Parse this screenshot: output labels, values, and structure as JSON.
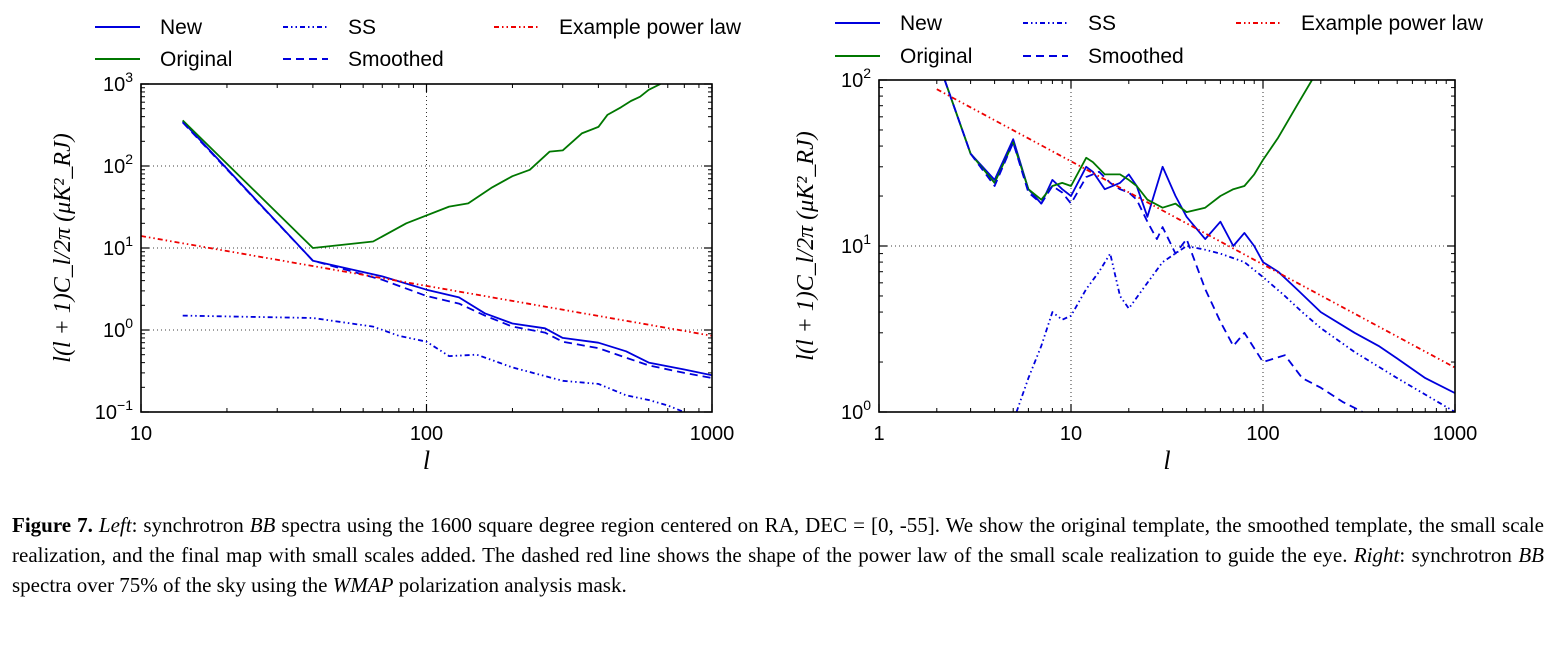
{
  "chart_data": [
    {
      "id": "left",
      "type": "line",
      "xscale": "log",
      "yscale": "log",
      "xlim": [
        10,
        1000
      ],
      "ylim": [
        0.1,
        1000
      ],
      "xlabel": "l",
      "ylabel": "l(l + 1)C_l/2π (μK²_RJ)",
      "grid": true,
      "xticks": [
        {
          "value": 10,
          "label": "10"
        },
        {
          "value": 100,
          "label": "100"
        },
        {
          "value": 1000,
          "label": "1000"
        }
      ],
      "yticks": [
        {
          "value": 0.1,
          "base": "10",
          "exp": "−1"
        },
        {
          "value": 1,
          "base": "10",
          "exp": "0"
        },
        {
          "value": 10,
          "base": "10",
          "exp": "1"
        },
        {
          "value": 100,
          "base": "10",
          "exp": "2"
        },
        {
          "value": 1000,
          "base": "10",
          "exp": "3"
        }
      ],
      "series": [
        {
          "name": "New",
          "color": "#0000dd",
          "style": "solid",
          "x": [
            14,
            40,
            70,
            100,
            130,
            160,
            200,
            260,
            300,
            400,
            500,
            600,
            800,
            1000
          ],
          "y": [
            350,
            7,
            4.5,
            3.1,
            2.5,
            1.6,
            1.2,
            1.05,
            0.8,
            0.7,
            0.55,
            0.4,
            0.33,
            0.28
          ]
        },
        {
          "name": "Original",
          "color": "#007700",
          "style": "solid",
          "x": [
            14,
            40,
            65,
            85,
            120,
            140,
            170,
            200,
            230,
            270,
            300,
            350,
            400,
            430,
            480,
            520,
            560,
            600,
            660
          ],
          "y": [
            360,
            10,
            12,
            20,
            32,
            35,
            55,
            75,
            90,
            150,
            155,
            250,
            300,
            420,
            520,
            620,
            700,
            850,
            1000
          ]
        },
        {
          "name": "SS",
          "color": "#0000dd",
          "style": "dashdotdot",
          "x": [
            14,
            40,
            65,
            80,
            100,
            120,
            150,
            200,
            300,
            400,
            500,
            600,
            700,
            860
          ],
          "y": [
            1.5,
            1.4,
            1.1,
            0.85,
            0.72,
            0.48,
            0.5,
            0.35,
            0.24,
            0.22,
            0.16,
            0.14,
            0.12,
            0.09
          ]
        },
        {
          "name": "Smoothed",
          "color": "#0000dd",
          "style": "dashed",
          "x": [
            14,
            40,
            70,
            100,
            130,
            160,
            200,
            260,
            300,
            400,
            500,
            600,
            800,
            1000
          ],
          "y": [
            340,
            7,
            4.1,
            2.6,
            2.1,
            1.5,
            1.1,
            0.93,
            0.72,
            0.6,
            0.46,
            0.37,
            0.3,
            0.26
          ]
        },
        {
          "name": "Example power law",
          "color": "#ee0000",
          "style": "dashdotdot",
          "x": [
            10,
            1000
          ],
          "y": [
            14,
            0.85
          ]
        }
      ]
    },
    {
      "id": "right",
      "type": "line",
      "xscale": "log",
      "yscale": "log",
      "xlim": [
        1,
        1000
      ],
      "ylim": [
        1,
        100
      ],
      "xlabel": "l",
      "ylabel": "l(l + 1)C_l/2π (μK²_RJ)",
      "grid": true,
      "xticks": [
        {
          "value": 1,
          "label": "1"
        },
        {
          "value": 10,
          "label": "10"
        },
        {
          "value": 100,
          "label": "100"
        },
        {
          "value": 1000,
          "label": "1000"
        }
      ],
      "yticks": [
        {
          "value": 1,
          "base": "10",
          "exp": "0"
        },
        {
          "value": 10,
          "base": "10",
          "exp": "1"
        },
        {
          "value": 100,
          "base": "10",
          "exp": "2"
        }
      ],
      "series": [
        {
          "name": "New",
          "color": "#0000dd",
          "style": "solid",
          "x": [
            2.2,
            3,
            4,
            5,
            6,
            7,
            8,
            9,
            10,
            12,
            13,
            15,
            18,
            20,
            22,
            25,
            30,
            35,
            40,
            50,
            60,
            70,
            80,
            90,
            100,
            120,
            150,
            200,
            300,
            400,
            500,
            700,
            1000
          ],
          "y": [
            100,
            36,
            25,
            44,
            22,
            18,
            25,
            22,
            20,
            30,
            28,
            22,
            24,
            27,
            23,
            15,
            30,
            20,
            15,
            11,
            14,
            10,
            12,
            10,
            8,
            7,
            5.5,
            4,
            3,
            2.5,
            2.1,
            1.6,
            1.3
          ]
        },
        {
          "name": "Original",
          "color": "#007700",
          "style": "solid",
          "x": [
            2.2,
            3,
            4,
            5,
            6,
            7,
            8,
            9,
            10,
            12,
            13,
            15,
            18,
            20,
            22,
            25,
            30,
            35,
            40,
            50,
            60,
            70,
            80,
            90,
            100,
            120,
            150,
            180
          ],
          "y": [
            100,
            36,
            24,
            42,
            22,
            19,
            23,
            24,
            23,
            34,
            32,
            27,
            27,
            25,
            23,
            19,
            17,
            18,
            16,
            17,
            20,
            22,
            23,
            27,
            33,
            45,
            70,
            100
          ]
        },
        {
          "name": "SS",
          "color": "#0000dd",
          "style": "dashdotdot",
          "x": [
            5.2,
            6,
            7,
            8,
            9,
            10,
            12,
            14,
            16,
            18,
            20,
            25,
            30,
            40,
            50,
            60,
            80,
            100,
            130,
            160,
            200,
            300,
            500,
            1000
          ],
          "y": [
            1,
            1.6,
            2.5,
            4,
            3.6,
            3.8,
            5.5,
            7,
            9,
            5,
            4.2,
            6,
            8,
            10,
            9.5,
            9,
            8,
            6.5,
            5,
            4,
            3.2,
            2.3,
            1.6,
            1
          ]
        },
        {
          "name": "Smoothed",
          "color": "#0000dd",
          "style": "dashed",
          "x": [
            2.2,
            3,
            4,
            5,
            6,
            7,
            8,
            9,
            10,
            12,
            14,
            16,
            18,
            20,
            22,
            25,
            28,
            30,
            35,
            40,
            50,
            60,
            70,
            80,
            100,
            130,
            160,
            200,
            260,
            330
          ],
          "y": [
            100,
            36,
            23,
            42,
            21,
            18,
            23,
            21,
            18,
            26,
            28,
            24,
            22,
            21,
            19,
            14,
            11,
            13,
            9,
            11,
            5.5,
            3.5,
            2.5,
            3,
            2,
            2.2,
            1.6,
            1.4,
            1.15,
            1
          ]
        },
        {
          "name": "Example power law",
          "color": "#ee0000",
          "style": "dashdotdot",
          "x": [
            2,
            1000
          ],
          "y": [
            88,
            1.85
          ]
        }
      ]
    }
  ],
  "caption": {
    "fig_label": "Figure 7.",
    "left_label": "Left",
    "part1": ": synchrotron ",
    "bb1": "BB",
    "part2": " spectra using the 1600 square degree region centered on RA, DEC = [0, -55]. We show the original template, the smoothed template, the small scale realization, and the final map with small scales added. The dashed red line shows the shape of the power law of the small scale realization to guide the eye. ",
    "right_label": "Right",
    "part3": ": synchrotron ",
    "bb2": "BB",
    "part4": " spectra over 75% of the sky using the ",
    "wmap": "WMAP",
    "part5": " polarization analysis mask."
  }
}
